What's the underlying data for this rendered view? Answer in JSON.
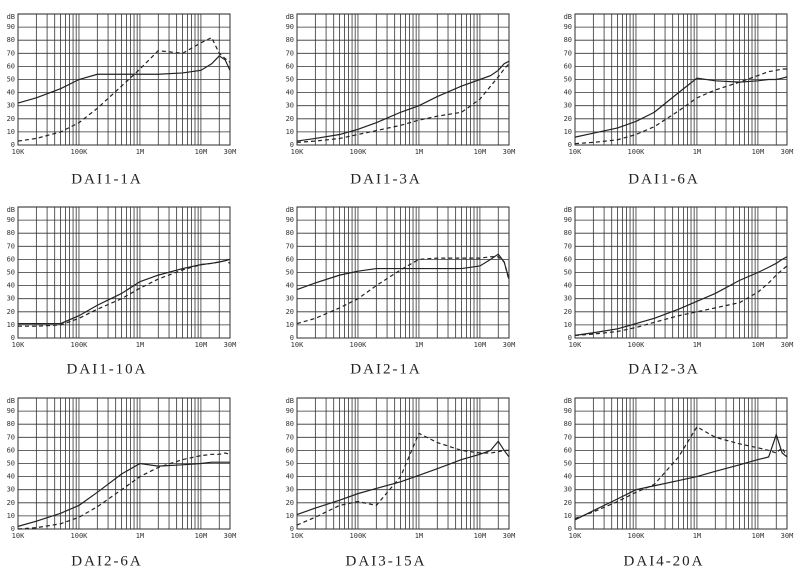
{
  "chart_data": [
    {
      "type": "line",
      "title": "DAI1-1A",
      "y_label": "dB",
      "log_x": true,
      "grid": true,
      "x": [
        10000,
        20000,
        50000,
        100000,
        200000,
        500000,
        1000000,
        2000000,
        5000000,
        10000000,
        15000000,
        20000000,
        25000000,
        30000000
      ],
      "xlim": [
        10000,
        30000000
      ],
      "xticks": [
        {
          "value": 10000,
          "label": "10K"
        },
        {
          "value": 100000,
          "label": "100K"
        },
        {
          "value": 1000000,
          "label": "1M"
        },
        {
          "value": 10000000,
          "label": "10M"
        },
        {
          "value": 30000000,
          "label": "30M"
        }
      ],
      "ylim": [
        0,
        100
      ],
      "yticks": [
        0,
        10,
        20,
        30,
        40,
        50,
        60,
        70,
        80,
        90
      ],
      "series": [
        {
          "color": "#222222",
          "style": "solid",
          "values": [
            32,
            36,
            43,
            50,
            54,
            54,
            54,
            54,
            55,
            57,
            62,
            68,
            65,
            57
          ]
        },
        {
          "color": "#222222",
          "style": "dashed",
          "values": [
            3,
            5,
            10,
            17,
            28,
            45,
            58,
            72,
            70,
            78,
            82,
            70,
            66,
            63
          ]
        }
      ]
    },
    {
      "type": "line",
      "title": "DAI1-3A",
      "y_label": "dB",
      "log_x": true,
      "grid": true,
      "x": [
        10000,
        20000,
        50000,
        100000,
        200000,
        500000,
        1000000,
        2000000,
        5000000,
        10000000,
        15000000,
        20000000,
        25000000,
        30000000
      ],
      "xlim": [
        10000,
        30000000
      ],
      "xticks": [
        {
          "value": 10000,
          "label": "10K"
        },
        {
          "value": 100000,
          "label": "100K"
        },
        {
          "value": 1000000,
          "label": "1M"
        },
        {
          "value": 10000000,
          "label": "10M"
        },
        {
          "value": 30000000,
          "label": "30M"
        }
      ],
      "ylim": [
        0,
        100
      ],
      "yticks": [
        0,
        10,
        20,
        30,
        40,
        50,
        60,
        70,
        80,
        90
      ],
      "series": [
        {
          "color": "#222222",
          "style": "solid",
          "values": [
            3,
            5,
            8,
            12,
            17,
            25,
            30,
            37,
            45,
            50,
            53,
            57,
            62,
            64
          ]
        },
        {
          "color": "#222222",
          "style": "dashed",
          "values": [
            2,
            3,
            5,
            8,
            11,
            15,
            19,
            22,
            25,
            35,
            45,
            52,
            58,
            62
          ]
        }
      ]
    },
    {
      "type": "line",
      "title": "DAI1-6A",
      "y_label": "dB",
      "log_x": true,
      "grid": true,
      "x": [
        10000,
        20000,
        50000,
        100000,
        200000,
        500000,
        1000000,
        2000000,
        5000000,
        10000000,
        15000000,
        20000000,
        25000000,
        30000000
      ],
      "xlim": [
        10000,
        30000000
      ],
      "xticks": [
        {
          "value": 10000,
          "label": "10K"
        },
        {
          "value": 100000,
          "label": "100K"
        },
        {
          "value": 1000000,
          "label": "1M"
        },
        {
          "value": 10000000,
          "label": "10M"
        },
        {
          "value": 30000000,
          "label": "30M"
        }
      ],
      "ylim": [
        0,
        100
      ],
      "yticks": [
        0,
        10,
        20,
        30,
        40,
        50,
        60,
        70,
        80,
        90
      ],
      "series": [
        {
          "color": "#222222",
          "style": "solid",
          "values": [
            6,
            9,
            13,
            18,
            25,
            40,
            51,
            49,
            48,
            49,
            50,
            50,
            51,
            52
          ]
        },
        {
          "color": "#222222",
          "style": "dashed",
          "values": [
            1,
            2,
            4,
            8,
            14,
            26,
            36,
            42,
            48,
            53,
            56,
            57,
            58,
            58
          ]
        }
      ]
    },
    {
      "type": "line",
      "title": "DAI1-10A",
      "y_label": "dB",
      "log_x": true,
      "grid": true,
      "x": [
        10000,
        20000,
        50000,
        100000,
        200000,
        500000,
        1000000,
        2000000,
        5000000,
        10000000,
        15000000,
        20000000,
        25000000,
        30000000
      ],
      "xlim": [
        10000,
        30000000
      ],
      "xticks": [
        {
          "value": 10000,
          "label": "10K"
        },
        {
          "value": 100000,
          "label": "100K"
        },
        {
          "value": 1000000,
          "label": "1M"
        },
        {
          "value": 10000000,
          "label": "10M"
        },
        {
          "value": 30000000,
          "label": "30M"
        }
      ],
      "ylim": [
        0,
        100
      ],
      "yticks": [
        0,
        10,
        20,
        30,
        40,
        50,
        60,
        70,
        80,
        90
      ],
      "series": [
        {
          "color": "#222222",
          "style": "solid",
          "values": [
            11,
            11,
            11,
            17,
            25,
            34,
            43,
            48,
            53,
            56,
            57,
            58,
            59,
            60
          ]
        },
        {
          "color": "#222222",
          "style": "dashed",
          "values": [
            9,
            9,
            10,
            15,
            22,
            30,
            38,
            45,
            52,
            56,
            57,
            58,
            59,
            57
          ]
        }
      ]
    },
    {
      "type": "line",
      "title": "DAI2-1A",
      "y_label": "dB",
      "log_x": true,
      "grid": true,
      "x": [
        10000,
        20000,
        50000,
        100000,
        200000,
        500000,
        1000000,
        2000000,
        5000000,
        10000000,
        15000000,
        20000000,
        25000000,
        30000000
      ],
      "xlim": [
        10000,
        30000000
      ],
      "xticks": [
        {
          "value": 10000,
          "label": "10K"
        },
        {
          "value": 100000,
          "label": "100K"
        },
        {
          "value": 1000000,
          "label": "1M"
        },
        {
          "value": 10000000,
          "label": "10M"
        },
        {
          "value": 30000000,
          "label": "30M"
        }
      ],
      "ylim": [
        0,
        100
      ],
      "yticks": [
        0,
        10,
        20,
        30,
        40,
        50,
        60,
        70,
        80,
        90
      ],
      "series": [
        {
          "color": "#222222",
          "style": "solid",
          "values": [
            37,
            42,
            48,
            51,
            53,
            53,
            53,
            53,
            53,
            55,
            60,
            64,
            58,
            45
          ]
        },
        {
          "color": "#222222",
          "style": "dashed",
          "values": [
            11,
            15,
            23,
            30,
            40,
            52,
            60,
            61,
            61,
            61,
            62,
            62,
            58,
            44
          ]
        }
      ]
    },
    {
      "type": "line",
      "title": "DAI2-3A",
      "y_label": "dB",
      "log_x": true,
      "grid": true,
      "x": [
        10000,
        20000,
        50000,
        100000,
        200000,
        500000,
        1000000,
        2000000,
        5000000,
        10000000,
        15000000,
        20000000,
        25000000,
        30000000
      ],
      "xlim": [
        10000,
        30000000
      ],
      "xticks": [
        {
          "value": 10000,
          "label": "10K"
        },
        {
          "value": 100000,
          "label": "100K"
        },
        {
          "value": 1000000,
          "label": "1M"
        },
        {
          "value": 10000000,
          "label": "10M"
        },
        {
          "value": 30000000,
          "label": "30M"
        }
      ],
      "ylim": [
        0,
        100
      ],
      "yticks": [
        0,
        10,
        20,
        30,
        40,
        50,
        60,
        70,
        80,
        90
      ],
      "series": [
        {
          "color": "#222222",
          "style": "solid",
          "values": [
            2,
            4,
            7,
            11,
            15,
            22,
            28,
            34,
            44,
            50,
            54,
            57,
            60,
            62
          ]
        },
        {
          "color": "#222222",
          "style": "dashed",
          "values": [
            2,
            3,
            5,
            8,
            12,
            17,
            20,
            23,
            27,
            35,
            42,
            48,
            52,
            55
          ]
        }
      ]
    },
    {
      "type": "line",
      "title": "DAI2-6A",
      "y_label": "dB",
      "log_x": true,
      "grid": true,
      "x": [
        10000,
        20000,
        50000,
        100000,
        200000,
        500000,
        1000000,
        2000000,
        5000000,
        10000000,
        15000000,
        20000000,
        25000000,
        30000000
      ],
      "xlim": [
        10000,
        30000000
      ],
      "xticks": [
        {
          "value": 10000,
          "label": "10K"
        },
        {
          "value": 100000,
          "label": "100K"
        },
        {
          "value": 1000000,
          "label": "1M"
        },
        {
          "value": 10000000,
          "label": "10M"
        },
        {
          "value": 30000000,
          "label": "30M"
        }
      ],
      "ylim": [
        0,
        100
      ],
      "yticks": [
        0,
        10,
        20,
        30,
        40,
        50,
        60,
        70,
        80,
        90
      ],
      "series": [
        {
          "color": "#222222",
          "style": "solid",
          "values": [
            2,
            6,
            12,
            18,
            28,
            42,
            50,
            48,
            49,
            50,
            51,
            51,
            51,
            51
          ]
        },
        {
          "color": "#222222",
          "style": "dashed",
          "values": [
            0,
            1,
            4,
            9,
            17,
            30,
            40,
            47,
            53,
            56,
            57,
            57,
            58,
            57
          ]
        }
      ]
    },
    {
      "type": "line",
      "title": "DAI3-15A",
      "y_label": "dB",
      "log_x": true,
      "grid": true,
      "x": [
        10000,
        20000,
        50000,
        100000,
        200000,
        500000,
        1000000,
        2000000,
        5000000,
        10000000,
        15000000,
        20000000,
        25000000,
        30000000
      ],
      "xlim": [
        10000,
        30000000
      ],
      "xticks": [
        {
          "value": 10000,
          "label": "10K"
        },
        {
          "value": 100000,
          "label": "100K"
        },
        {
          "value": 1000000,
          "label": "1M"
        },
        {
          "value": 10000000,
          "label": "10M"
        },
        {
          "value": 30000000,
          "label": "30M"
        }
      ],
      "ylim": [
        0,
        100
      ],
      "yticks": [
        0,
        10,
        20,
        30,
        40,
        50,
        60,
        70,
        80,
        90
      ],
      "series": [
        {
          "color": "#222222",
          "style": "solid",
          "values": [
            11,
            16,
            22,
            27,
            31,
            36,
            41,
            46,
            53,
            57,
            60,
            67,
            60,
            55
          ]
        },
        {
          "color": "#222222",
          "style": "dashed",
          "values": [
            3,
            9,
            18,
            21,
            18,
            40,
            73,
            66,
            60,
            58,
            58,
            59,
            60,
            60
          ]
        }
      ]
    },
    {
      "type": "line",
      "title": "DAI4-20A",
      "y_label": "dB",
      "log_x": true,
      "grid": true,
      "x": [
        10000,
        20000,
        50000,
        100000,
        200000,
        500000,
        1000000,
        2000000,
        5000000,
        10000000,
        15000000,
        20000000,
        25000000,
        30000000
      ],
      "xlim": [
        10000,
        30000000
      ],
      "xticks": [
        {
          "value": 10000,
          "label": "10K"
        },
        {
          "value": 100000,
          "label": "100K"
        },
        {
          "value": 1000000,
          "label": "1M"
        },
        {
          "value": 10000000,
          "label": "10M"
        },
        {
          "value": 30000000,
          "label": "30M"
        }
      ],
      "ylim": [
        0,
        100
      ],
      "yticks": [
        0,
        10,
        20,
        30,
        40,
        50,
        60,
        70,
        80,
        90
      ],
      "series": [
        {
          "color": "#222222",
          "style": "solid",
          "values": [
            7,
            14,
            23,
            30,
            33,
            37,
            40,
            44,
            49,
            53,
            55,
            72,
            58,
            55
          ]
        },
        {
          "color": "#222222",
          "style": "dashed",
          "values": [
            8,
            13,
            21,
            28,
            34,
            55,
            78,
            70,
            65,
            62,
            60,
            58,
            62,
            55
          ]
        }
      ]
    }
  ]
}
